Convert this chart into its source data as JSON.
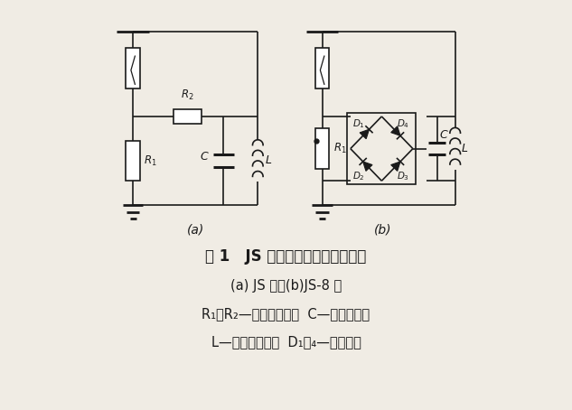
{
  "bg_color": "#f0ece4",
  "line_color": "#1a1a1a",
  "title_line1": "图 1   JS 型动作记数器的原理接线",
  "title_line2": "(a) JS 型；(b)JS-8 型",
  "title_line3": "R₁、R₂—非线性电阱；  C—贮能电容器",
  "title_line4": "L—记数器线圈；  D₁～₄—硬二极管",
  "label_a": "(a)",
  "label_b": "(b)"
}
